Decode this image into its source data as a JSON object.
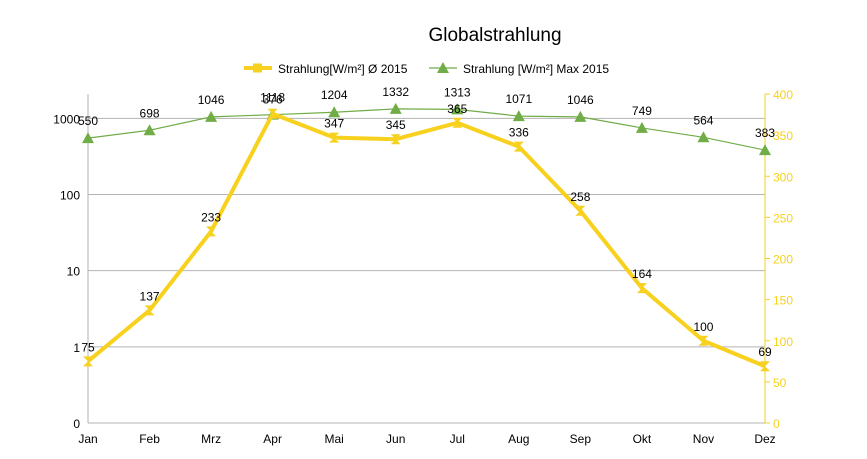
{
  "chart_data": {
    "type": "line",
    "title": "Globalstrahlung",
    "categories": [
      "Jan",
      "Feb",
      "Mrz",
      "Apr",
      "Mai",
      "Jun",
      "Jul",
      "Aug",
      "Sep",
      "Okt",
      "Nov",
      "Dez"
    ],
    "series": [
      {
        "name": "Strahlung[W/m²] Ø 2015",
        "axis": "right",
        "color": "#f7d11e",
        "values": [
          75,
          137,
          233,
          376,
          347,
          345,
          365,
          336,
          258,
          164,
          100,
          69
        ]
      },
      {
        "name": "Strahlung [W/m²] Max 2015",
        "axis": "left",
        "color": "#70ad47",
        "values": [
          550,
          698,
          1046,
          1118,
          1204,
          1332,
          1313,
          1071,
          1046,
          749,
          564,
          383
        ]
      }
    ],
    "y_left": {
      "scale": "log",
      "ticks": [
        "0",
        "1",
        "10",
        "100",
        "1000"
      ]
    },
    "y_right": {
      "scale": "linear",
      "min": 0,
      "max": 400,
      "ticks": [
        "0",
        "50",
        "100",
        "150",
        "200",
        "250",
        "300",
        "350",
        "400"
      ]
    },
    "grid": true,
    "legend_position": "top"
  }
}
